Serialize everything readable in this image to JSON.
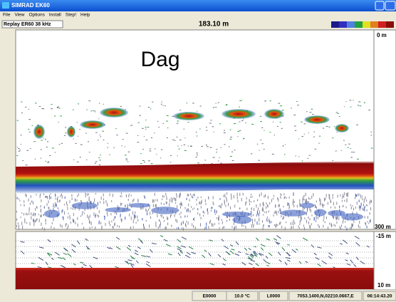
{
  "window": {
    "title": "SIMRAD EK60"
  },
  "menu": [
    "File",
    "View",
    "Options",
    "Install",
    "Step!",
    "Help"
  ],
  "toolbar": {
    "channel": "Replay ER60 38 kHz",
    "depth": "183.10 m"
  },
  "echogram": {
    "annotation": "Dag",
    "scale_top": "0 m",
    "scale_bottom": "300 m"
  },
  "bottom_view": {
    "scale_top": "-15 m",
    "scale_bottom": "10 m"
  },
  "status": [
    "E0000",
    "10.0 °C",
    "L0000",
    "7053.1400,N,02210.0667,E",
    "06:14:43.20"
  ]
}
